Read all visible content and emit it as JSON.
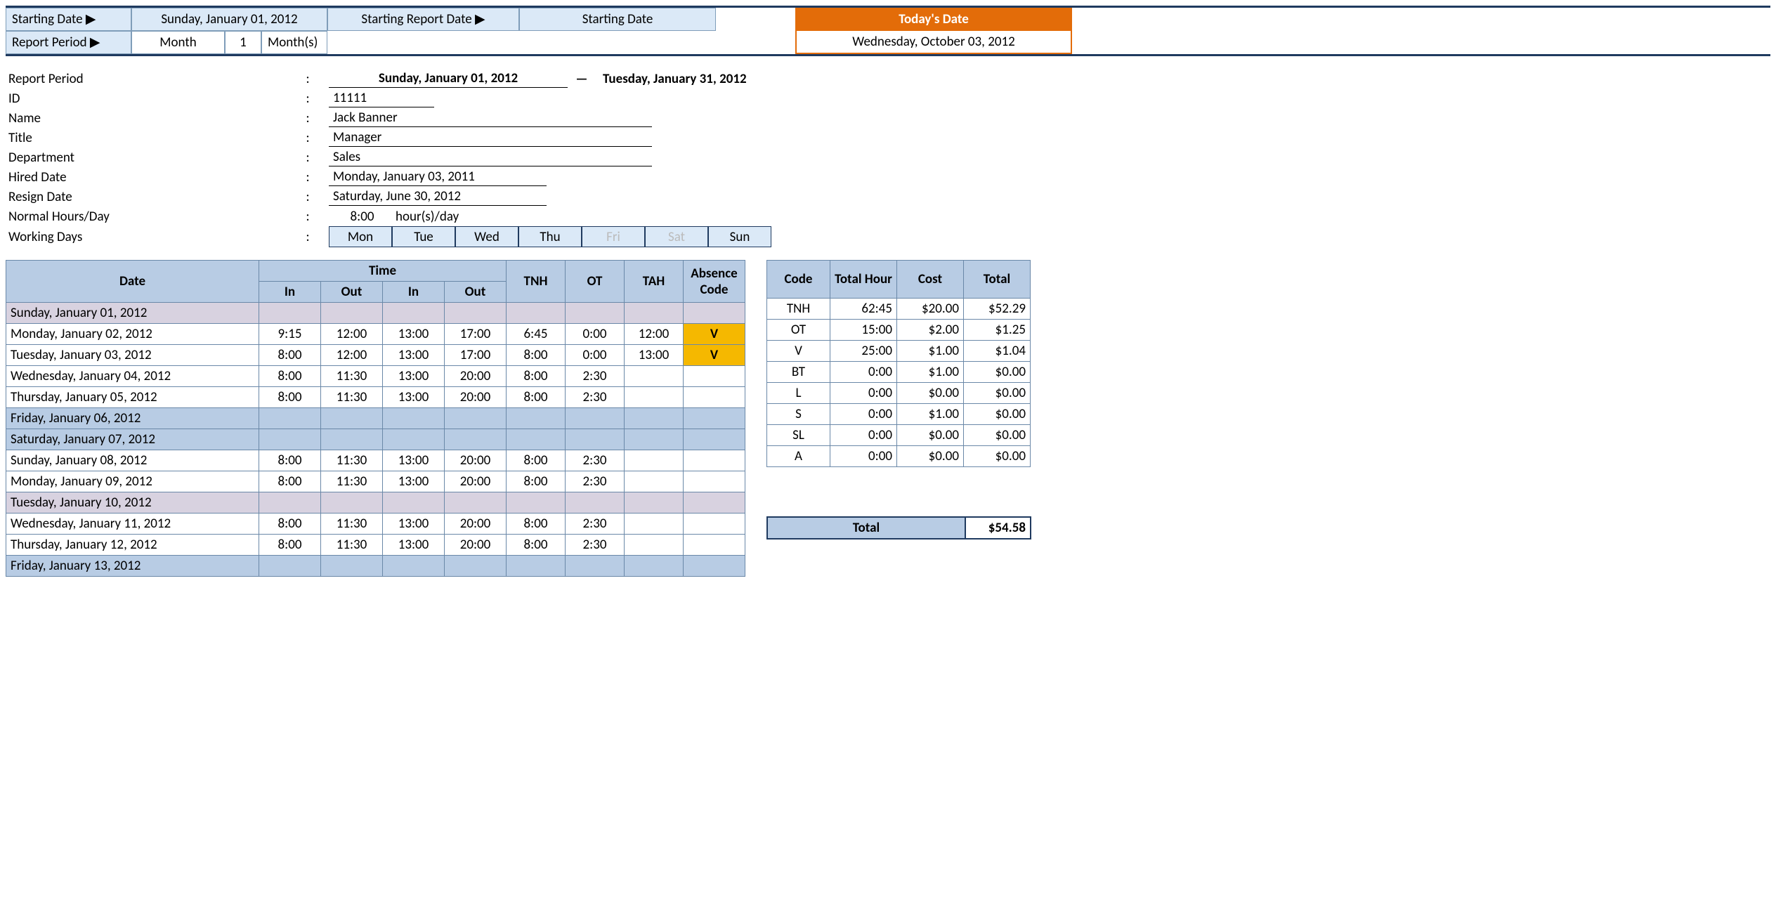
{
  "header": {
    "starting_date_label": "Starting Date ▶",
    "starting_date_value": "Sunday, January 01, 2012",
    "report_period_label": "Report Period ▶",
    "period_unit": "Month",
    "period_num": "1",
    "period_suffix": "Month(s)",
    "starting_report_date_label": "Starting Report Date ▶",
    "starting_report_value": "Starting Date",
    "todays_date_label": "Today's Date",
    "todays_date_value": "Wednesday, October 03, 2012"
  },
  "info": {
    "report_period_label": "Report Period",
    "report_period_start": "Sunday, January 01, 2012",
    "report_period_dash": "—",
    "report_period_end": "Tuesday, January 31, 2012",
    "id_label": "ID",
    "id_value": "11111",
    "name_label": "Name",
    "name_value": "Jack Banner",
    "title_label": "Title",
    "title_value": "Manager",
    "dept_label": "Department",
    "dept_value": "Sales",
    "hired_label": "Hired Date",
    "hired_value": "Monday, January 03, 2011",
    "resign_label": "Resign Date",
    "resign_value": "Saturday, June 30, 2012",
    "normal_label": "Normal Hours/Day",
    "normal_hours": "8:00",
    "normal_suffix": "hour(s)/day",
    "working_label": "Working Days",
    "days": [
      "Mon",
      "Tue",
      "Wed",
      "Thu",
      "Fri",
      "Sat",
      "Sun"
    ],
    "days_dim": [
      false,
      false,
      false,
      false,
      true,
      true,
      false
    ]
  },
  "columns": {
    "date": "Date",
    "time": "Time",
    "in": "In",
    "out": "Out",
    "tnh": "TNH",
    "ot": "OT",
    "tah": "TAH",
    "absence": "Absence Code"
  },
  "rows": [
    {
      "date": "Sunday, January 01, 2012",
      "in1": "",
      "out1": "",
      "in2": "",
      "out2": "",
      "tnh": "",
      "ot": "",
      "tah": "",
      "abs": "",
      "cls": "grey"
    },
    {
      "date": "Monday, January 02, 2012",
      "in1": "9:15",
      "out1": "12:00",
      "in2": "13:00",
      "out2": "17:00",
      "tnh": "6:45",
      "ot": "0:00",
      "tah": "12:00",
      "abs": "V",
      "cls": ""
    },
    {
      "date": "Tuesday, January 03, 2012",
      "in1": "8:00",
      "out1": "12:00",
      "in2": "13:00",
      "out2": "17:00",
      "tnh": "8:00",
      "ot": "0:00",
      "tah": "13:00",
      "abs": "V",
      "cls": ""
    },
    {
      "date": "Wednesday, January 04, 2012",
      "in1": "8:00",
      "out1": "11:30",
      "in2": "13:00",
      "out2": "20:00",
      "tnh": "8:00",
      "ot": "2:30",
      "tah": "",
      "abs": "",
      "cls": ""
    },
    {
      "date": "Thursday, January 05, 2012",
      "in1": "8:00",
      "out1": "11:30",
      "in2": "13:00",
      "out2": "20:00",
      "tnh": "8:00",
      "ot": "2:30",
      "tah": "",
      "abs": "",
      "cls": ""
    },
    {
      "date": "Friday, January 06, 2012",
      "in1": "",
      "out1": "",
      "in2": "",
      "out2": "",
      "tnh": "",
      "ot": "",
      "tah": "",
      "abs": "",
      "cls": "blue"
    },
    {
      "date": "Saturday, January 07, 2012",
      "in1": "",
      "out1": "",
      "in2": "",
      "out2": "",
      "tnh": "",
      "ot": "",
      "tah": "",
      "abs": "",
      "cls": "blue"
    },
    {
      "date": "Sunday, January 08, 2012",
      "in1": "8:00",
      "out1": "11:30",
      "in2": "13:00",
      "out2": "20:00",
      "tnh": "8:00",
      "ot": "2:30",
      "tah": "",
      "abs": "",
      "cls": ""
    },
    {
      "date": "Monday, January 09, 2012",
      "in1": "8:00",
      "out1": "11:30",
      "in2": "13:00",
      "out2": "20:00",
      "tnh": "8:00",
      "ot": "2:30",
      "tah": "",
      "abs": "",
      "cls": ""
    },
    {
      "date": "Tuesday, January 10, 2012",
      "in1": "",
      "out1": "",
      "in2": "",
      "out2": "",
      "tnh": "",
      "ot": "",
      "tah": "",
      "abs": "",
      "cls": "grey"
    },
    {
      "date": "Wednesday, January 11, 2012",
      "in1": "8:00",
      "out1": "11:30",
      "in2": "13:00",
      "out2": "20:00",
      "tnh": "8:00",
      "ot": "2:30",
      "tah": "",
      "abs": "",
      "cls": ""
    },
    {
      "date": "Thursday, January 12, 2012",
      "in1": "8:00",
      "out1": "11:30",
      "in2": "13:00",
      "out2": "20:00",
      "tnh": "8:00",
      "ot": "2:30",
      "tah": "",
      "abs": "",
      "cls": ""
    },
    {
      "date": "Friday, January 13, 2012",
      "in1": "",
      "out1": "",
      "in2": "",
      "out2": "",
      "tnh": "",
      "ot": "",
      "tah": "",
      "abs": "",
      "cls": "blue"
    }
  ],
  "summary_cols": {
    "code": "Code",
    "hour": "Total Hour",
    "cost": "Cost",
    "total": "Total"
  },
  "summary": [
    {
      "code": "TNH",
      "hour": "62:45",
      "cost": "$20.00",
      "total": "$52.29"
    },
    {
      "code": "OT",
      "hour": "15:00",
      "cost": "$2.00",
      "total": "$1.25"
    },
    {
      "code": "V",
      "hour": "25:00",
      "cost": "$1.00",
      "total": "$1.04"
    },
    {
      "code": "BT",
      "hour": "0:00",
      "cost": "$1.00",
      "total": "$0.00"
    },
    {
      "code": "L",
      "hour": "0:00",
      "cost": "$0.00",
      "total": "$0.00"
    },
    {
      "code": "S",
      "hour": "0:00",
      "cost": "$1.00",
      "total": "$0.00"
    },
    {
      "code": "SL",
      "hour": "0:00",
      "cost": "$0.00",
      "total": "$0.00"
    },
    {
      "code": "A",
      "hour": "0:00",
      "cost": "$0.00",
      "total": "$0.00"
    }
  ],
  "grand_total": {
    "label": "Total",
    "value": "$54.58"
  }
}
